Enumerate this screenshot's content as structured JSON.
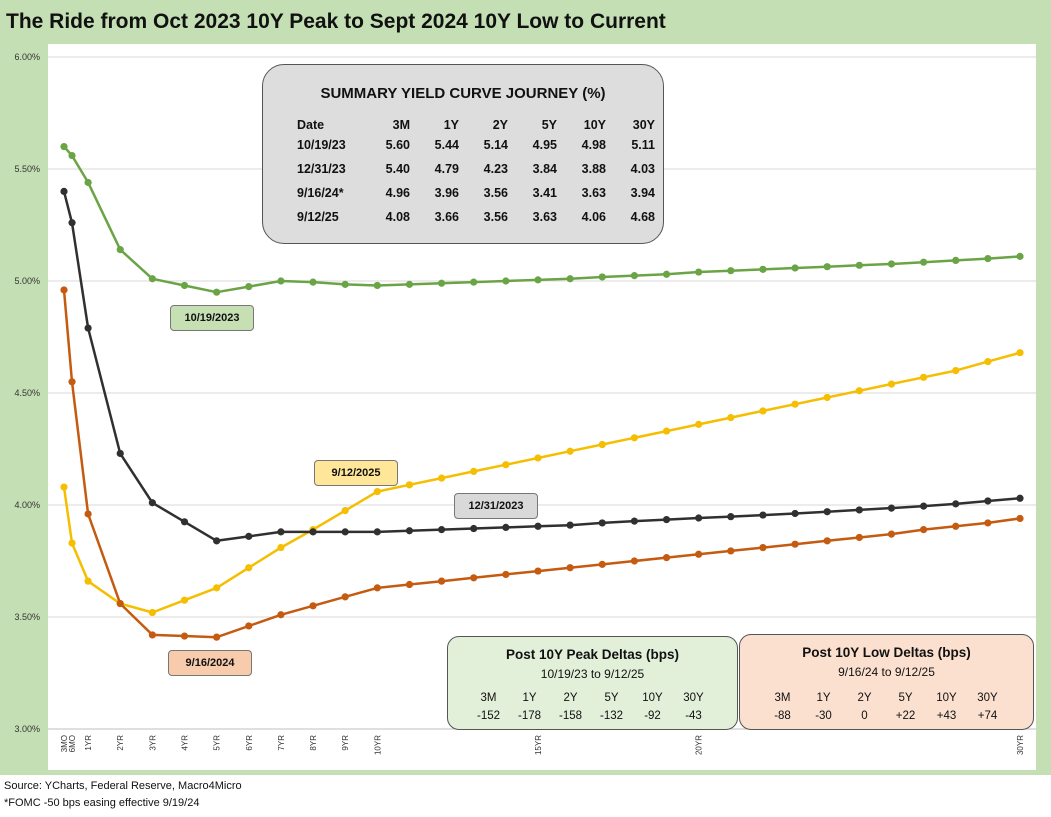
{
  "title": "The Ride from Oct 2023 10Y Peak to Sept 2024 10Y Low to Current",
  "footer": {
    "source": "Source: YCharts, Federal Reserve, Macro4Micro",
    "note": "*FOMC -50 bps easing effective  9/19/24"
  },
  "summary": {
    "title": "SUMMARY YIELD CURVE JOURNEY (%)",
    "headers": [
      "Date",
      "3M",
      "1Y",
      "2Y",
      "5Y",
      "10Y",
      "30Y"
    ],
    "rows": [
      [
        "10/19/23",
        "5.60",
        "5.44",
        "5.14",
        "4.95",
        "4.98",
        "5.11"
      ],
      [
        "12/31/23",
        "5.40",
        "4.79",
        "4.23",
        "3.84",
        "3.88",
        "4.03"
      ],
      [
        "9/16/24*",
        "4.96",
        "3.96",
        "3.56",
        "3.41",
        "3.63",
        "3.94"
      ],
      [
        "9/12/25",
        "4.08",
        "3.66",
        "3.56",
        "3.63",
        "4.06",
        "4.68"
      ]
    ]
  },
  "peak_deltas": {
    "title": "Post 10Y Peak Deltas (bps)",
    "subtitle": "10/19/23 to 9/12/25",
    "headers": [
      "3M",
      "1Y",
      "2Y",
      "5Y",
      "10Y",
      "30Y"
    ],
    "values": [
      "-152",
      "-178",
      "-158",
      "-132",
      "-92",
      "-43"
    ]
  },
  "low_deltas": {
    "title": "Post 10Y Low Deltas (bps)",
    "subtitle": "9/16/24 to 9/12/25",
    "headers": [
      "3M",
      "1Y",
      "2Y",
      "5Y",
      "10Y",
      "30Y"
    ],
    "values": [
      "-88",
      "-30",
      "0",
      "+22",
      "+43",
      "+74"
    ]
  },
  "chart_data": {
    "type": "line",
    "y_ticks": [
      "3.00%",
      "3.50%",
      "4.00%",
      "4.50%",
      "5.00%",
      "5.50%",
      "6.00%"
    ],
    "ylim": [
      3.0,
      6.0
    ],
    "x": [
      0.25,
      0.5,
      1,
      2,
      3,
      4,
      5,
      6,
      7,
      8,
      9,
      10,
      11,
      12,
      13,
      14,
      15,
      16,
      17,
      18,
      19,
      20,
      21,
      22,
      23,
      24,
      25,
      26,
      27,
      28,
      29,
      30
    ],
    "x_tick_labels": [
      "3MO",
      "6MO",
      "1YR",
      "2YR",
      "3YR",
      "4YR",
      "5YR",
      "6YR",
      "7YR",
      "8YR",
      "9YR",
      "10YR",
      "15YR",
      "20YR",
      "30YR"
    ],
    "x_tick_values": [
      0.25,
      0.5,
      1,
      2,
      3,
      4,
      5,
      6,
      7,
      8,
      9,
      10,
      15,
      20,
      30
    ],
    "grid": true,
    "series": [
      {
        "name": "10/19/2023",
        "color": "#6aa445",
        "label_fill": "#c6e0b4",
        "values": [
          5.6,
          5.56,
          5.44,
          5.14,
          5.01,
          4.98,
          4.95,
          4.975,
          5.0,
          4.995,
          4.985,
          4.98,
          4.985,
          4.99,
          4.995,
          5.0,
          5.005,
          5.01,
          5.018,
          5.024,
          5.03,
          5.04,
          5.046,
          5.052,
          5.058,
          5.064,
          5.07,
          5.076,
          5.084,
          5.092,
          5.1,
          5.11
        ]
      },
      {
        "name": "9/12/2025",
        "color": "#f5be00",
        "label_fill": "#ffe699",
        "values": [
          4.08,
          3.83,
          3.66,
          3.56,
          3.52,
          3.575,
          3.63,
          3.72,
          3.81,
          3.89,
          3.975,
          4.06,
          4.09,
          4.12,
          4.15,
          4.18,
          4.21,
          4.24,
          4.27,
          4.3,
          4.33,
          4.36,
          4.39,
          4.42,
          4.45,
          4.48,
          4.51,
          4.54,
          4.57,
          4.6,
          4.64,
          4.68
        ]
      },
      {
        "name": "12/31/2023",
        "color": "#303030",
        "label_fill": "#d9d9d9",
        "values": [
          5.4,
          5.26,
          4.79,
          4.23,
          4.01,
          3.925,
          3.84,
          3.86,
          3.88,
          3.88,
          3.88,
          3.88,
          3.885,
          3.89,
          3.895,
          3.9,
          3.905,
          3.91,
          3.92,
          3.928,
          3.935,
          3.942,
          3.948,
          3.955,
          3.962,
          3.97,
          3.978,
          3.986,
          3.995,
          4.005,
          4.018,
          4.03
        ]
      },
      {
        "name": "9/16/2024",
        "color": "#c55a11",
        "label_fill": "#f8cbad",
        "values": [
          4.96,
          4.55,
          3.96,
          3.56,
          3.42,
          3.415,
          3.41,
          3.46,
          3.51,
          3.55,
          3.59,
          3.63,
          3.645,
          3.66,
          3.675,
          3.69,
          3.705,
          3.72,
          3.735,
          3.75,
          3.765,
          3.78,
          3.795,
          3.81,
          3.825,
          3.84,
          3.855,
          3.87,
          3.89,
          3.905,
          3.92,
          3.94
        ]
      }
    ]
  }
}
